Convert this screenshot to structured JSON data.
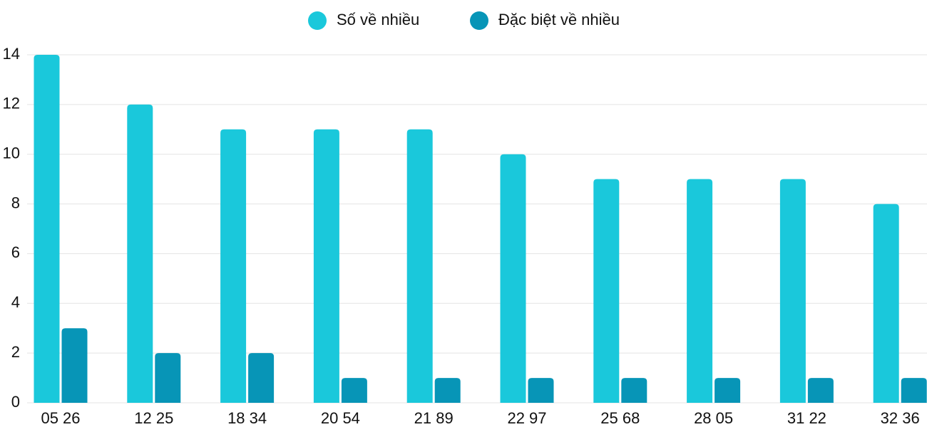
{
  "chart_data": {
    "type": "bar",
    "categories": [
      "05 26",
      "12 25",
      "18 34",
      "20 54",
      "21 89",
      "22 97",
      "25 68",
      "28 05",
      "31 22",
      "32 36"
    ],
    "series": [
      {
        "name": "Số về nhiều",
        "color": "#1ac8db",
        "values": [
          14,
          12,
          11,
          11,
          11,
          10,
          9,
          9,
          9,
          8
        ]
      },
      {
        "name": "Đặc biệt về nhiều",
        "color": "#0795b7",
        "values": [
          3,
          2,
          2,
          1,
          1,
          1,
          1,
          1,
          1,
          1
        ]
      }
    ],
    "ylim": [
      0,
      14
    ],
    "yticks": [
      0,
      2,
      4,
      6,
      8,
      10,
      12,
      14
    ],
    "grid": true,
    "legend": "top"
  }
}
